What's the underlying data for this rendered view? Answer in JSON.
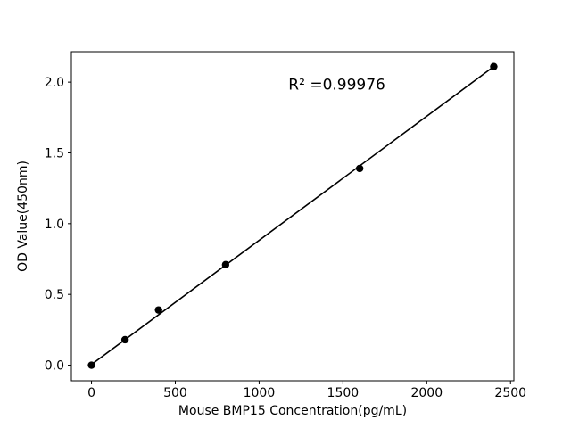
{
  "chart_data": {
    "type": "scatter",
    "title": "",
    "xlabel": "Mouse BMP15 Concentration(pg/mL)",
    "ylabel": "OD Value(450nm)",
    "annotation": "R² =0.99976",
    "annotation_pos_frac": {
      "x": 0.6,
      "y": 0.885
    },
    "x": [
      0,
      200,
      400,
      800,
      1600,
      2400
    ],
    "y": [
      0.0,
      0.18,
      0.39,
      0.71,
      1.39,
      2.11
    ],
    "fit_line": {
      "x1": 0,
      "y1": 0.005,
      "x2": 2400,
      "y2": 2.11
    },
    "xlim": [
      -120,
      2520
    ],
    "ylim": [
      -0.11,
      2.215
    ],
    "xticks": [
      0,
      500,
      1000,
      1500,
      2000,
      2500
    ],
    "xtick_labels": [
      "0",
      "500",
      "1000",
      "1500",
      "2000",
      "2500"
    ],
    "yticks": [
      0.0,
      0.5,
      1.0,
      1.5,
      2.0
    ],
    "ytick_labels": [
      "0.0",
      "0.5",
      "1.0",
      "1.5",
      "2.0"
    ],
    "grid": false,
    "legend": "none",
    "colors": {
      "point": "#000000",
      "line": "#000000",
      "axis": "#000000",
      "background": "#ffffff"
    }
  }
}
